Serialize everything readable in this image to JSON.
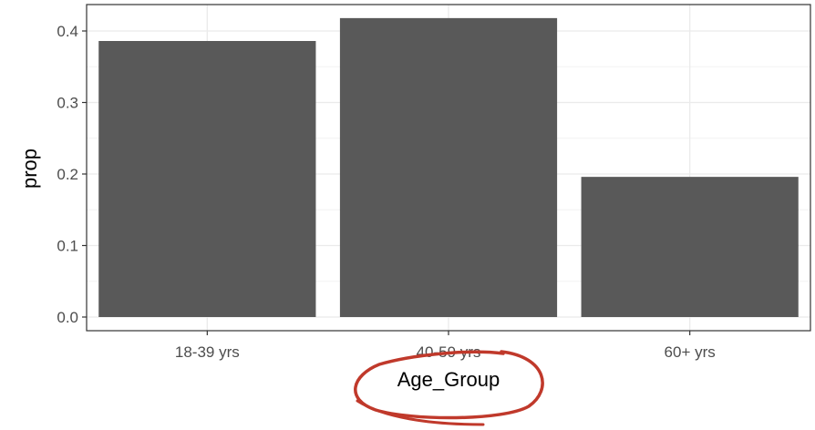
{
  "chart_data": {
    "type": "bar",
    "categories": [
      "18-39 yrs",
      "40-59 yrs",
      "60+ yrs"
    ],
    "values": [
      0.386,
      0.418,
      0.196
    ],
    "title": "",
    "xlabel": "Age_Group",
    "ylabel": "prop",
    "ylim": [
      0,
      0.43
    ],
    "yticks": [
      "0.0",
      "0.1",
      "0.2",
      "0.3",
      "0.4"
    ],
    "grid": true,
    "theme": "bw",
    "bar_color": "#595959",
    "annotation": {
      "type": "hand-drawn circle",
      "target": "Age_Group",
      "color": "#c0392b"
    }
  }
}
